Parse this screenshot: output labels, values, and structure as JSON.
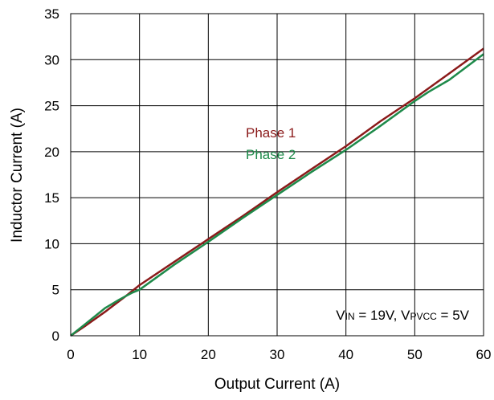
{
  "chart_data": {
    "type": "line",
    "title": "",
    "xlabel": "Output Current (A)",
    "ylabel": "Inductor Current (A)",
    "xlim": [
      0,
      60
    ],
    "ylim": [
      0,
      35
    ],
    "xticks": [
      "0",
      "10",
      "20",
      "30",
      "40",
      "50",
      "60"
    ],
    "yticks": [
      "0",
      "5",
      "10",
      "15",
      "20",
      "25",
      "30",
      "35"
    ],
    "grid": true,
    "legend": "inline-center",
    "series": [
      {
        "name": "Phase 1",
        "color": "#8b1a1a",
        "x": [
          0,
          2,
          5,
          8,
          10,
          15,
          20,
          25,
          30,
          35,
          40,
          45,
          50,
          55,
          60
        ],
        "y": [
          0,
          1.0,
          2.6,
          4.3,
          5.5,
          8.0,
          10.5,
          13.0,
          15.6,
          18.1,
          20.6,
          23.3,
          25.8,
          28.5,
          31.2
        ]
      },
      {
        "name": "Phase 2",
        "color": "#1e8a4a",
        "x": [
          0,
          2,
          5,
          7,
          8,
          9,
          10,
          15,
          20,
          25,
          30,
          35,
          40,
          45,
          50,
          52,
          55,
          60
        ],
        "y": [
          0,
          1.2,
          3.0,
          3.9,
          4.3,
          4.7,
          5.0,
          7.7,
          10.2,
          12.8,
          15.3,
          17.8,
          20.2,
          22.8,
          25.5,
          26.5,
          27.8,
          30.6
        ]
      }
    ],
    "annotation": {
      "v1": "V",
      "v1_sub": "IN",
      "v1_rest": " = 19V, V",
      "v2_sub": "PVCC",
      "v2_rest": " = 5V"
    }
  }
}
